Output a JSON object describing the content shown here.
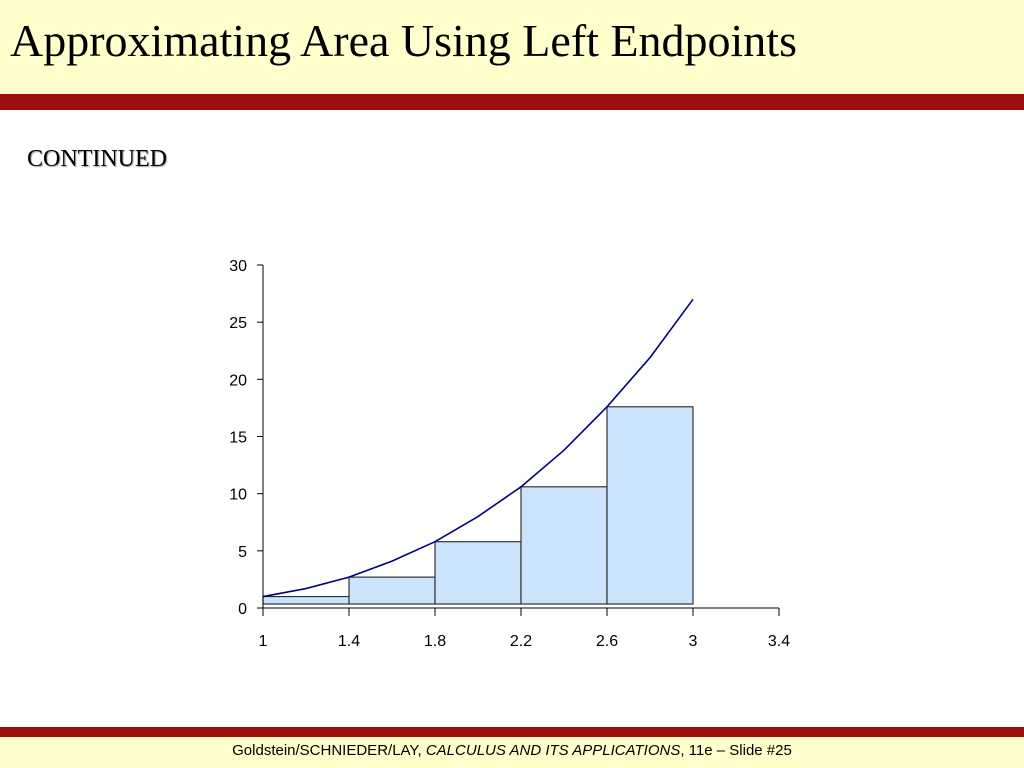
{
  "slide": {
    "title": "Approximating Area Using Left Endpoints",
    "subtitle": "CONTINUED"
  },
  "footer": {
    "authors": "Goldstein/SCHNIEDER/LAY, ",
    "book": "CALCULUS AND ITS APPLICATIONS",
    "edition": ", 11e – Slide #25"
  },
  "colors": {
    "title_band": "#ffffcc",
    "rule": "#9b0e0e",
    "bar_fill": "#cce4fb",
    "bar_stroke": "#333333",
    "curve": "#000080"
  },
  "chart_data": {
    "type": "bar",
    "title": "",
    "xlabel": "",
    "ylabel": "",
    "x_ticks": [
      "1",
      "1.4",
      "1.8",
      "2.2",
      "2.6",
      "3",
      "3.4"
    ],
    "y_ticks": [
      "0",
      "5",
      "10",
      "15",
      "20",
      "25",
      "30"
    ],
    "xlim": [
      1,
      3.4
    ],
    "ylim": [
      0,
      30
    ],
    "bars": [
      {
        "x0": 1.0,
        "x1": 1.4,
        "value": 1.0
      },
      {
        "x0": 1.4,
        "x1": 1.8,
        "value": 2.7
      },
      {
        "x0": 1.8,
        "x1": 2.2,
        "value": 5.8
      },
      {
        "x0": 2.2,
        "x1": 2.6,
        "value": 10.6
      },
      {
        "x0": 2.6,
        "x1": 3.0,
        "value": 17.6
      }
    ],
    "curve": {
      "x": [
        1.0,
        1.2,
        1.4,
        1.6,
        1.8,
        2.0,
        2.2,
        2.4,
        2.6,
        2.8,
        3.0
      ],
      "y": [
        1.0,
        1.7,
        2.7,
        4.1,
        5.8,
        8.0,
        10.6,
        13.8,
        17.6,
        21.9,
        27.0
      ]
    },
    "grid": false,
    "legend": "none"
  }
}
